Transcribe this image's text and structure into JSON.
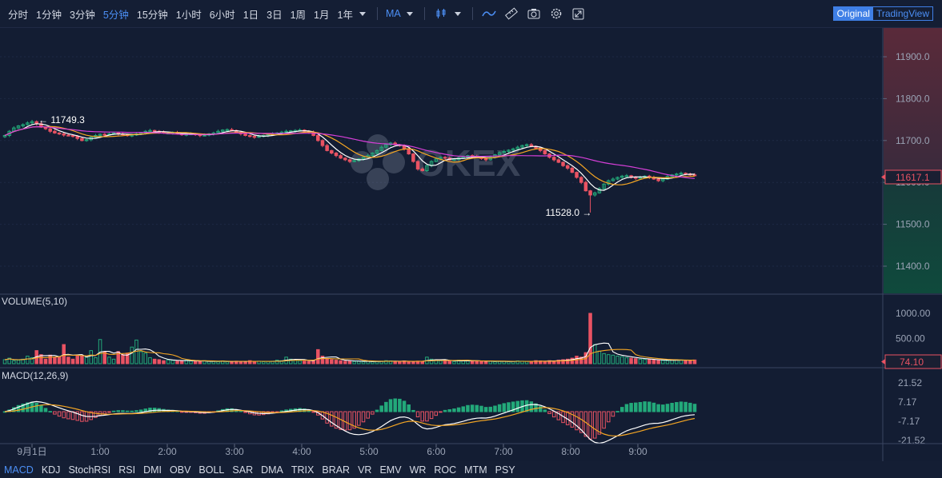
{
  "toolbar": {
    "timeframes": [
      {
        "label": "分时",
        "active": false
      },
      {
        "label": "1分钟",
        "active": false
      },
      {
        "label": "3分钟",
        "active": false
      },
      {
        "label": "5分钟",
        "active": true
      },
      {
        "label": "15分钟",
        "active": false
      },
      {
        "label": "1小时",
        "active": false
      },
      {
        "label": "6小时",
        "active": false
      },
      {
        "label": "1日",
        "active": false
      },
      {
        "label": "3日",
        "active": false
      },
      {
        "label": "1周",
        "active": false
      },
      {
        "label": "1月",
        "active": false
      },
      {
        "label": "1年",
        "active": false
      }
    ],
    "indicator_label": "MA",
    "icons": [
      "candlestick-icon",
      "line-draw-icon",
      "ruler-icon",
      "camera-icon",
      "gear-icon",
      "fullscreen-icon"
    ],
    "view_original": "Original",
    "view_tradingview": "TradingView"
  },
  "watermark": "OKEX",
  "main_panel": {
    "high_label": "← 11749.3",
    "low_label": "11528.0 →",
    "price_ticks": [
      "11900.0",
      "11800.0",
      "11700.0",
      "11600.0",
      "11500.0",
      "11400.0"
    ],
    "price_tick_values": [
      11900,
      11800,
      11700,
      11600,
      11500,
      11400
    ],
    "current_price": "11617.1"
  },
  "volume_panel": {
    "title": "VOLUME(5,10)",
    "ticks": [
      "1000.00",
      "500.00"
    ],
    "tick_values": [
      1000,
      500
    ],
    "current": "74.10"
  },
  "macd_panel": {
    "title": "MACD(12,26,9)",
    "ticks": [
      "21.52",
      "7.17",
      "-7.17",
      "-21.52"
    ],
    "tick_values": [
      21.52,
      7.17,
      -7.17,
      -21.52
    ]
  },
  "time_axis": [
    "9月1日",
    "1:00",
    "2:00",
    "3:00",
    "4:00",
    "5:00",
    "6:00",
    "7:00",
    "8:00",
    "9:00"
  ],
  "bottom_indicators": [
    {
      "label": "MACD",
      "active": true
    },
    {
      "label": "KDJ",
      "active": false
    },
    {
      "label": "StochRSI",
      "active": false
    },
    {
      "label": "RSI",
      "active": false
    },
    {
      "label": "DMI",
      "active": false
    },
    {
      "label": "OBV",
      "active": false
    },
    {
      "label": "BOLL",
      "active": false
    },
    {
      "label": "SAR",
      "active": false
    },
    {
      "label": "DMA",
      "active": false
    },
    {
      "label": "TRIX",
      "active": false
    },
    {
      "label": "BRAR",
      "active": false
    },
    {
      "label": "VR",
      "active": false
    },
    {
      "label": "EMV",
      "active": false
    },
    {
      "label": "WR",
      "active": false
    },
    {
      "label": "ROC",
      "active": false
    },
    {
      "label": "MTM",
      "active": false
    },
    {
      "label": "PSY",
      "active": false
    }
  ],
  "colors": {
    "up": "#23a97a",
    "down": "#e95363",
    "ma5": "#ffffff",
    "ma10": "#f5a623",
    "ma30": "#d63fd8",
    "accent": "#4c8ff5"
  },
  "chart_data": {
    "type": "candlestick",
    "high": 11749.3,
    "low": 11528.0,
    "last": 11617.1,
    "price_path": [
      11712,
      11722,
      11730,
      11735,
      11738,
      11742,
      11745,
      11740,
      11732,
      11728,
      11722,
      11718,
      11716,
      11713,
      11712,
      11710,
      11705,
      11700,
      11702,
      11708,
      11712,
      11715,
      11714,
      11716,
      11718,
      11716,
      11714,
      11712,
      11713,
      11716,
      11718,
      11722,
      11724,
      11722,
      11720,
      11718,
      11718,
      11719,
      11716,
      11714,
      11715,
      11716,
      11714,
      11712,
      11713,
      11716,
      11718,
      11722,
      11725,
      11726,
      11724,
      11720,
      11716,
      11712,
      11710,
      11708,
      11710,
      11712,
      11714,
      11716,
      11718,
      11720,
      11722,
      11723,
      11724,
      11725,
      11722,
      11720,
      11712,
      11700,
      11688,
      11676,
      11670,
      11664,
      11658,
      11654,
      11650,
      11652,
      11656,
      11660,
      11664,
      11670,
      11676,
      11684,
      11690,
      11694,
      11690,
      11688,
      11680,
      11668,
      11650,
      11632,
      11628,
      11640,
      11650,
      11656,
      11660,
      11658,
      11654,
      11655,
      11658,
      11660,
      11664,
      11662,
      11660,
      11657,
      11654,
      11660,
      11666,
      11671,
      11674,
      11677,
      11680,
      11684,
      11688,
      11690,
      11686,
      11682,
      11676,
      11668,
      11660,
      11654,
      11648,
      11640,
      11634,
      11624,
      11612,
      11600,
      11580,
      11570,
      11575,
      11585,
      11596,
      11604,
      11608,
      11612,
      11615,
      11616,
      11612,
      11610,
      11612,
      11615,
      11612,
      11608,
      11604,
      11608,
      11614,
      11618,
      11620,
      11622,
      11620,
      11618,
      11617
    ],
    "volume_path": [
      80,
      110,
      60,
      70,
      90,
      150,
      120,
      260,
      180,
      90,
      170,
      120,
      130,
      380,
      130,
      90,
      150,
      160,
      130,
      260,
      120,
      480,
      230,
      130,
      90,
      240,
      180,
      210,
      330,
      470,
      240,
      210,
      120,
      90,
      80,
      60,
      75,
      65,
      50,
      60,
      70,
      55,
      45,
      40,
      60,
      50,
      45,
      40,
      55,
      40,
      45,
      50,
      45,
      40,
      60,
      45,
      50,
      40,
      45,
      50,
      70,
      60,
      130,
      90,
      80,
      60,
      50,
      45,
      70,
      280,
      150,
      90,
      80,
      70,
      60,
      50,
      55,
      45,
      50,
      40,
      50,
      40,
      45,
      50,
      60,
      55,
      45,
      40,
      55,
      45,
      45,
      50,
      40,
      130,
      90,
      80,
      60,
      55,
      50,
      45,
      70,
      60,
      55,
      60,
      50,
      55,
      45,
      50,
      40,
      45,
      50,
      40,
      45,
      55,
      50,
      45,
      40,
      60,
      55,
      50,
      60,
      55,
      70,
      80,
      90,
      110,
      150,
      130,
      220,
      1000,
      380,
      250,
      200,
      180,
      170,
      150,
      140,
      120,
      110,
      100,
      90,
      85,
      80,
      75,
      70,
      65,
      60,
      70,
      80,
      75,
      65,
      60,
      74
    ],
    "macd_ticks": [
      21.52,
      7.17,
      -7.17,
      -21.52
    ]
  }
}
